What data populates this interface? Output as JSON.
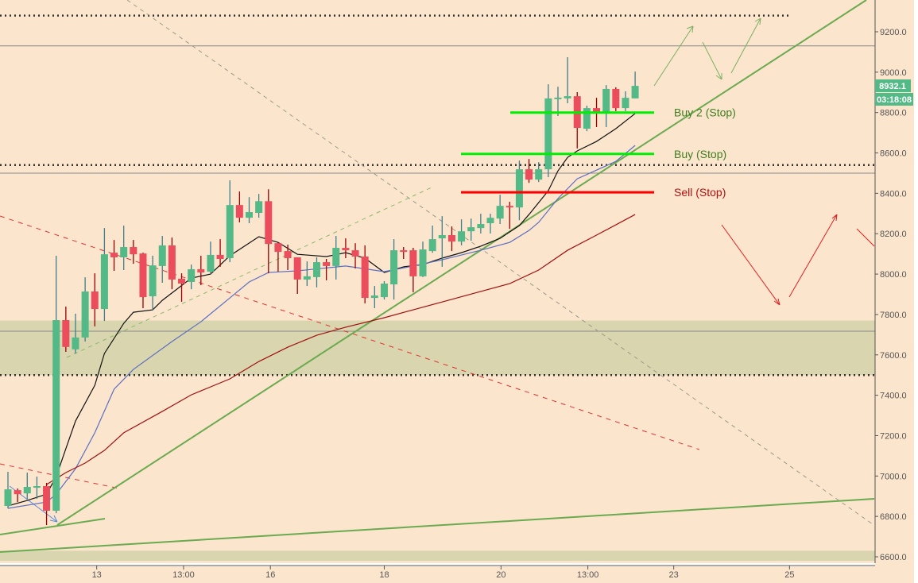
{
  "chart_data": {
    "type": "candlestick",
    "title": "",
    "ylim": [
      6560,
      9360
    ],
    "y_ticks": [
      "6600.0",
      "6800.0",
      "7000.0",
      "7200.0",
      "7400.0",
      "7600.0",
      "7800.0",
      "8000.0",
      "8200.0",
      "8400.0",
      "8600.0",
      "8800.0",
      "9000.0",
      "9200.0"
    ],
    "x_ticks": [
      {
        "label": "13",
        "candle": 9.2
      },
      {
        "label": "13:00",
        "candle": 18.2
      },
      {
        "label": "16",
        "candle": 27.2
      },
      {
        "label": "18",
        "candle": 39.0
      },
      {
        "label": "20",
        "candle": 51.1
      },
      {
        "label": "13:00",
        "candle": 60.1
      },
      {
        "label": "23",
        "candle": 69.0
      },
      {
        "label": "25",
        "candle": 81.0
      }
    ],
    "colors": {
      "up": "#53b987",
      "down": "#eb4d5c",
      "up_wick": "#3d7f8c",
      "down_wick": "#990000",
      "background": "#fce5cd"
    },
    "candles": [
      [
        6852,
        7021,
        6840,
        6934
      ],
      [
        6930,
        6938,
        6871,
        6910
      ],
      [
        6914,
        7017,
        6887,
        6946
      ],
      [
        6942,
        6997,
        6887,
        6950
      ],
      [
        6950,
        6966,
        6757,
        6828
      ],
      [
        6828,
        8091,
        6816,
        7772
      ],
      [
        7772,
        7839,
        7615,
        7639
      ],
      [
        7627,
        7804,
        7607,
        7686
      ],
      [
        7686,
        7984,
        7666,
        7914
      ],
      [
        7914,
        8004,
        7741,
        7827
      ],
      [
        7827,
        8228,
        7768,
        8098
      ],
      [
        8106,
        8169,
        8016,
        8083
      ],
      [
        8083,
        8240,
        8020,
        8134
      ],
      [
        8134,
        8169,
        8051,
        8098
      ],
      [
        8102,
        8106,
        7831,
        7886
      ],
      [
        7890,
        8091,
        7823,
        8043
      ],
      [
        8040,
        8189,
        7957,
        8142
      ],
      [
        8142,
        8181,
        7925,
        7973
      ],
      [
        7977,
        8004,
        7863,
        7953
      ],
      [
        7961,
        8047,
        7925,
        8024
      ],
      [
        8024,
        8091,
        7945,
        8008
      ],
      [
        8012,
        8161,
        8000,
        8095
      ],
      [
        8095,
        8173,
        8036,
        8075
      ],
      [
        8079,
        8464,
        8059,
        8342
      ],
      [
        8342,
        8409,
        8256,
        8279
      ],
      [
        8279,
        8381,
        8252,
        8307
      ],
      [
        8303,
        8397,
        8279,
        8361
      ],
      [
        8361,
        8420,
        8004,
        8149
      ],
      [
        8153,
        8157,
        8012,
        8110
      ],
      [
        8114,
        8146,
        8020,
        8079
      ],
      [
        8083,
        8083,
        7902,
        7973
      ],
      [
        7973,
        8063,
        7941,
        7989
      ],
      [
        7985,
        8083,
        7934,
        8059
      ],
      [
        8059,
        8075,
        7969,
        8040
      ],
      [
        8040,
        8189,
        7973,
        8130
      ],
      [
        8130,
        8177,
        8079,
        8118
      ],
      [
        8118,
        8153,
        8028,
        8087
      ],
      [
        8087,
        8142,
        7855,
        7882
      ],
      [
        7882,
        7941,
        7831,
        7894
      ],
      [
        7886,
        7965,
        7874,
        7953
      ],
      [
        7949,
        8173,
        7874,
        8118
      ],
      [
        8118,
        8134,
        8075,
        8110
      ],
      [
        8118,
        8130,
        7910,
        7989
      ],
      [
        7989,
        8161,
        7985,
        8122
      ],
      [
        8114,
        8240,
        8106,
        8173
      ],
      [
        8177,
        8287,
        8036,
        8193
      ],
      [
        8193,
        8236,
        8114,
        8161
      ],
      [
        8161,
        8271,
        8142,
        8212
      ],
      [
        8212,
        8275,
        8165,
        8232
      ],
      [
        8228,
        8299,
        8201,
        8248
      ],
      [
        8252,
        8299,
        8201,
        8279
      ],
      [
        8275,
        8393,
        8248,
        8338
      ],
      [
        8338,
        8358,
        8224,
        8330
      ],
      [
        8330,
        8562,
        8267,
        8519
      ],
      [
        8519,
        8570,
        8452,
        8468
      ],
      [
        8468,
        8554,
        8456,
        8519
      ],
      [
        8519,
        8940,
        8480,
        8870
      ],
      [
        8866,
        8928,
        8783,
        8874
      ],
      [
        8870,
        9074,
        8846,
        8881
      ],
      [
        8881,
        8901,
        8622,
        8724
      ],
      [
        8720,
        8834,
        8708,
        8822
      ],
      [
        8822,
        8873,
        8728,
        8795
      ],
      [
        8795,
        8936,
        8728,
        8917
      ],
      [
        8917,
        8925,
        8807,
        8822
      ],
      [
        8822,
        8905,
        8807,
        8873
      ],
      [
        8870,
        9003,
        8870,
        8932
      ]
    ],
    "moving_averages": [
      {
        "color": "#111111",
        "points": [
          [
            0,
            6852
          ],
          [
            2,
            6879
          ],
          [
            4,
            6910
          ],
          [
            5,
            6997
          ],
          [
            6,
            7135
          ],
          [
            7,
            7272
          ],
          [
            9,
            7449
          ],
          [
            10,
            7607
          ],
          [
            12,
            7756
          ],
          [
            13,
            7811
          ],
          [
            15,
            7823
          ],
          [
            16,
            7870
          ],
          [
            19,
            7980
          ],
          [
            21,
            8000
          ],
          [
            23,
            8091
          ],
          [
            26,
            8185
          ],
          [
            28,
            8157
          ],
          [
            30,
            8098
          ],
          [
            33,
            8087
          ],
          [
            35,
            8106
          ],
          [
            37,
            8079
          ],
          [
            39,
            8008
          ],
          [
            41,
            8036
          ],
          [
            43,
            8047
          ],
          [
            45,
            8079
          ],
          [
            47,
            8106
          ],
          [
            49,
            8138
          ],
          [
            51,
            8177
          ],
          [
            53,
            8240
          ],
          [
            54,
            8295
          ],
          [
            55,
            8354
          ],
          [
            56,
            8413
          ],
          [
            57,
            8511
          ],
          [
            58,
            8578
          ],
          [
            59,
            8610
          ],
          [
            61,
            8657
          ],
          [
            63,
            8720
          ],
          [
            65,
            8795
          ]
        ]
      },
      {
        "color": "#5b6fc2",
        "points": [
          [
            0,
            6840
          ],
          [
            4,
            6871
          ],
          [
            5,
            6910
          ],
          [
            7,
            7036
          ],
          [
            9,
            7214
          ],
          [
            11,
            7430
          ],
          [
            13,
            7528
          ],
          [
            17,
            7666
          ],
          [
            20,
            7764
          ],
          [
            23,
            7882
          ],
          [
            25,
            7961
          ],
          [
            27,
            8008
          ],
          [
            30,
            8016
          ],
          [
            35,
            8040
          ],
          [
            39,
            8012
          ],
          [
            42,
            8040
          ],
          [
            45,
            8071
          ],
          [
            49,
            8118
          ],
          [
            52,
            8157
          ],
          [
            54,
            8216
          ],
          [
            55,
            8256
          ],
          [
            57,
            8374
          ],
          [
            59,
            8472
          ],
          [
            61,
            8515
          ],
          [
            63,
            8558
          ],
          [
            65,
            8637
          ]
        ]
      },
      {
        "color": "#a01010",
        "points": [
          [
            4,
            6958
          ],
          [
            6,
            7017
          ],
          [
            8,
            7064
          ],
          [
            10,
            7127
          ],
          [
            12,
            7214
          ],
          [
            16,
            7320
          ],
          [
            19,
            7402
          ],
          [
            23,
            7481
          ],
          [
            26,
            7567
          ],
          [
            29,
            7638
          ],
          [
            32,
            7697
          ],
          [
            35,
            7737
          ],
          [
            39,
            7784
          ],
          [
            42,
            7823
          ],
          [
            45,
            7862
          ],
          [
            49,
            7914
          ],
          [
            52,
            7953
          ],
          [
            55,
            8020
          ],
          [
            58,
            8118
          ],
          [
            61,
            8193
          ],
          [
            65,
            8295
          ]
        ]
      }
    ],
    "levels": [
      {
        "label": "Buy 2 (Stop)",
        "price": 8800,
        "color": "#00ee00",
        "text_color": "#3f7f1f"
      },
      {
        "label": "Buy (Stop)",
        "price": 8595,
        "color": "#00ee00",
        "text_color": "#3f7f1f"
      },
      {
        "label": "Sell (Stop)",
        "price": 8405,
        "color": "#ff0000",
        "text_color": "#b01010"
      }
    ],
    "dotted_levels": [
      9280,
      8540,
      7500
    ],
    "gray_levels": [
      9130,
      8500,
      7717
    ],
    "zones": [
      [
        7500,
        7770
      ],
      [
        6580,
        6630
      ]
    ],
    "last_price": "8932.1",
    "countdown": "03:18:08"
  }
}
